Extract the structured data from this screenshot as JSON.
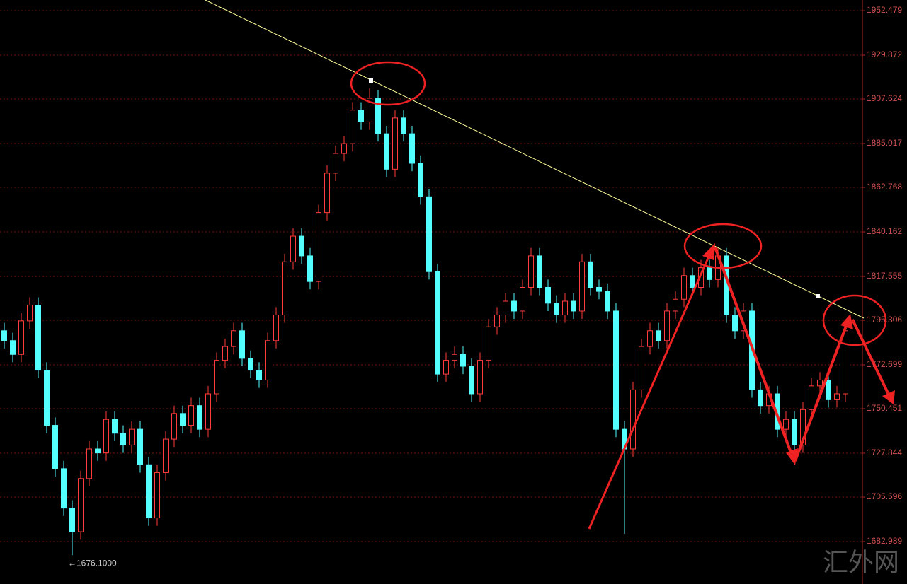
{
  "chart_data": {
    "type": "candlestick",
    "open": [
      1790,
      1785,
      1778,
      1795,
      1803,
      1770,
      1742,
      1720,
      1700,
      1688,
      1715,
      1730,
      1728,
      1745,
      1738,
      1732,
      1740,
      1722,
      1695,
      1718,
      1735,
      1748,
      1742,
      1752,
      1740,
      1758,
      1775,
      1782,
      1790,
      1776,
      1770,
      1765,
      1785,
      1798,
      1825,
      1838,
      1828,
      1815,
      1850,
      1870,
      1880,
      1885,
      1902,
      1896,
      1908,
      1890,
      1872,
      1898,
      1890,
      1875,
      1858,
      1820,
      1768,
      1775,
      1778,
      1772,
      1758,
      1775,
      1792,
      1798,
      1805,
      1800,
      1812,
      1828,
      1812,
      1804,
      1798,
      1805,
      1800,
      1825,
      1812,
      1810,
      1800,
      1740,
      1730,
      1760,
      1782,
      1790,
      1785,
      1800,
      1806,
      1818,
      1812,
      1822,
      1816,
      1828,
      1798,
      1790,
      1800,
      1760,
      1752,
      1758,
      1740,
      1745,
      1732,
      1750,
      1762,
      1765,
      1755,
      1758
    ],
    "high": [
      1794,
      1789,
      1799,
      1807,
      1807,
      1774,
      1746,
      1724,
      1704,
      1719,
      1734,
      1734,
      1749,
      1749,
      1742,
      1744,
      1744,
      1726,
      1722,
      1739,
      1752,
      1752,
      1756,
      1756,
      1762,
      1779,
      1786,
      1794,
      1794,
      1780,
      1774,
      1789,
      1802,
      1829,
      1842,
      1842,
      1832,
      1854,
      1874,
      1884,
      1889,
      1906,
      1906,
      1913,
      1912,
      1894,
      1902,
      1902,
      1894,
      1879,
      1862,
      1824,
      1779,
      1782,
      1782,
      1776,
      1779,
      1796,
      1802,
      1809,
      1809,
      1816,
      1832,
      1832,
      1816,
      1808,
      1809,
      1809,
      1829,
      1829,
      1816,
      1814,
      1804,
      1744,
      1764,
      1786,
      1794,
      1794,
      1804,
      1810,
      1822,
      1822,
      1826,
      1826,
      1832,
      1832,
      1802,
      1804,
      1804,
      1764,
      1762,
      1762,
      1749,
      1749,
      1754,
      1766,
      1769,
      1769,
      1762,
      1794
    ],
    "low": [
      1781,
      1774,
      1774,
      1791,
      1766,
      1738,
      1716,
      1696,
      1676.1,
      1684,
      1711,
      1724,
      1724,
      1734,
      1728,
      1728,
      1718,
      1691,
      1691,
      1714,
      1731,
      1738,
      1738,
      1736,
      1736,
      1754,
      1771,
      1778,
      1772,
      1766,
      1761,
      1761,
      1781,
      1794,
      1821,
      1824,
      1811,
      1811,
      1846,
      1866,
      1876,
      1881,
      1892,
      1892,
      1886,
      1868,
      1868,
      1886,
      1871,
      1854,
      1816,
      1764,
      1764,
      1771,
      1768,
      1754,
      1754,
      1771,
      1788,
      1794,
      1796,
      1796,
      1808,
      1808,
      1800,
      1794,
      1794,
      1796,
      1796,
      1808,
      1806,
      1796,
      1736,
      1687,
      1726,
      1756,
      1778,
      1781,
      1781,
      1796,
      1802,
      1808,
      1808,
      1812,
      1812,
      1794,
      1786,
      1786,
      1756,
      1748,
      1748,
      1736,
      1736,
      1722,
      1728,
      1746,
      1758,
      1751,
      1751,
      1754
    ],
    "close": [
      1785,
      1778,
      1795,
      1803,
      1770,
      1742,
      1720,
      1700,
      1688,
      1715,
      1730,
      1728,
      1745,
      1738,
      1732,
      1740,
      1722,
      1695,
      1718,
      1735,
      1748,
      1742,
      1752,
      1740,
      1758,
      1775,
      1782,
      1790,
      1776,
      1770,
      1765,
      1785,
      1798,
      1825,
      1838,
      1828,
      1815,
      1850,
      1870,
      1880,
      1885,
      1902,
      1896,
      1908,
      1890,
      1872,
      1898,
      1890,
      1875,
      1858,
      1820,
      1768,
      1775,
      1778,
      1772,
      1758,
      1775,
      1792,
      1798,
      1805,
      1800,
      1812,
      1828,
      1812,
      1804,
      1798,
      1805,
      1800,
      1825,
      1812,
      1810,
      1800,
      1740,
      1730,
      1760,
      1782,
      1790,
      1785,
      1800,
      1806,
      1818,
      1812,
      1822,
      1816,
      1828,
      1798,
      1790,
      1800,
      1760,
      1752,
      1758,
      1740,
      1745,
      1732,
      1750,
      1762,
      1765,
      1755,
      1758,
      1790
    ],
    "up_color": "#ff3c3c",
    "down_color": "#54ffff",
    "ylim": [
      1661.46,
      1957.88
    ],
    "yticks": [
      1682.989,
      1705.596,
      1727.844,
      1750.451,
      1772.699,
      1795.306,
      1817.555,
      1840.162,
      1862.768,
      1885.017,
      1907.624,
      1929.872,
      1952.479
    ],
    "grid": true,
    "low_label": "←1676.1000",
    "watermark": "汇外网"
  }
}
